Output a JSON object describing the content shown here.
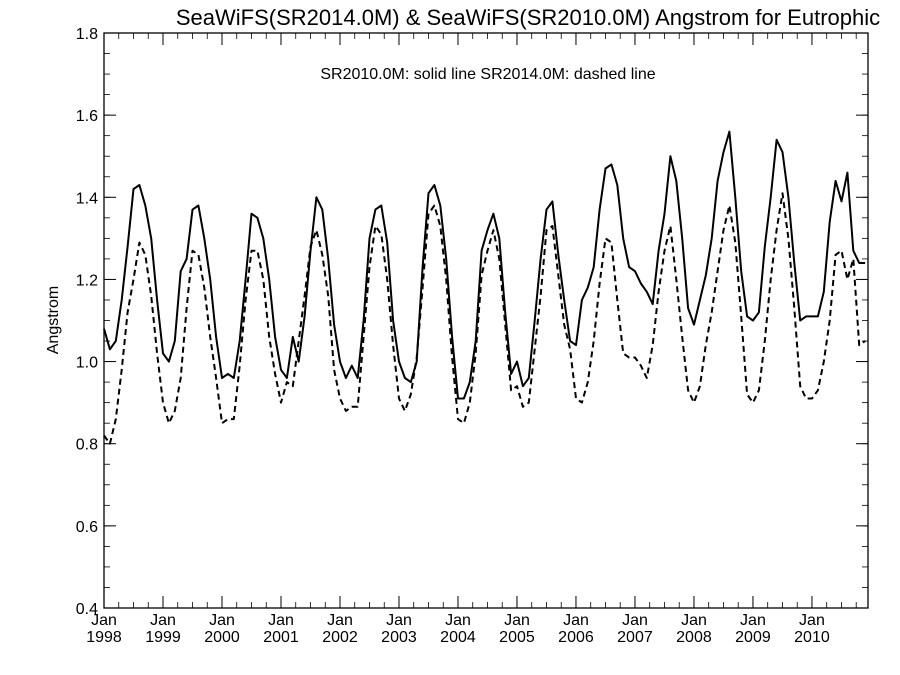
{
  "chart_data": {
    "type": "line",
    "title": "SeaWiFS(SR2014.0M) & SeaWiFS(SR2010.0M)  Angstrom for Eutrophic",
    "annotation": "SR2010.0M: solid line   SR2014.0M: dashed line",
    "xlabel": "",
    "ylabel": "Angstrom",
    "ylim": [
      0.4,
      1.8
    ],
    "yticks": [
      "0.4",
      "0.6",
      "0.8",
      "1.0",
      "1.2",
      "1.4",
      "1.6",
      "1.8"
    ],
    "xlim": [
      1998.0,
      2010.95
    ],
    "xticks": [
      {
        "top": "Jan",
        "bottom": "1998",
        "x": 1998
      },
      {
        "top": "Jan",
        "bottom": "1999",
        "x": 1999
      },
      {
        "top": "Jan",
        "bottom": "2000",
        "x": 2000
      },
      {
        "top": "Jan",
        "bottom": "2001",
        "x": 2001
      },
      {
        "top": "Jan",
        "bottom": "2002",
        "x": 2002
      },
      {
        "top": "Jan",
        "bottom": "2003",
        "x": 2003
      },
      {
        "top": "Jan",
        "bottom": "2004",
        "x": 2004
      },
      {
        "top": "Jan",
        "bottom": "2005",
        "x": 2005
      },
      {
        "top": "Jan",
        "bottom": "2006",
        "x": 2006
      },
      {
        "top": "Jan",
        "bottom": "2007",
        "x": 2007
      },
      {
        "top": "Jan",
        "bottom": "2008",
        "x": 2008
      },
      {
        "top": "Jan",
        "bottom": "2009",
        "x": 2009
      },
      {
        "top": "Jan",
        "bottom": "2010",
        "x": 2010
      }
    ],
    "grid": false,
    "series": [
      {
        "name": "SR2010.0M",
        "style": "solid",
        "x": [
          1998.0,
          1998.1,
          1998.2,
          1998.3,
          1998.4,
          1998.5,
          1998.6,
          1998.7,
          1998.8,
          1998.9,
          1999.0,
          1999.1,
          1999.2,
          1999.3,
          1999.4,
          1999.5,
          1999.6,
          1999.7,
          1999.8,
          1999.9,
          2000.0,
          2000.1,
          2000.2,
          2000.3,
          2000.4,
          2000.5,
          2000.6,
          2000.7,
          2000.8,
          2000.9,
          2001.0,
          2001.1,
          2001.2,
          2001.3,
          2001.4,
          2001.5,
          2001.6,
          2001.7,
          2001.8,
          2001.9,
          2002.0,
          2002.1,
          2002.2,
          2002.3,
          2002.4,
          2002.5,
          2002.6,
          2002.7,
          2002.8,
          2002.9,
          2003.0,
          2003.1,
          2003.2,
          2003.3,
          2003.4,
          2003.5,
          2003.6,
          2003.7,
          2003.8,
          2003.9,
          2004.0,
          2004.1,
          2004.2,
          2004.3,
          2004.4,
          2004.5,
          2004.6,
          2004.7,
          2004.8,
          2004.9,
          2005.0,
          2005.1,
          2005.2,
          2005.3,
          2005.4,
          2005.5,
          2005.6,
          2005.7,
          2005.8,
          2005.9,
          2006.0,
          2006.1,
          2006.2,
          2006.3,
          2006.4,
          2006.5,
          2006.6,
          2006.7,
          2006.8,
          2006.9,
          2007.0,
          2007.1,
          2007.2,
          2007.3,
          2007.4,
          2007.5,
          2007.6,
          2007.7,
          2007.8,
          2007.9,
          2008.0,
          2008.1,
          2008.2,
          2008.3,
          2008.4,
          2008.5,
          2008.6,
          2008.7,
          2008.8,
          2008.9,
          2009.0,
          2009.1,
          2009.2,
          2009.3,
          2009.4,
          2009.5,
          2009.6,
          2009.7,
          2009.8,
          2009.9,
          2010.0,
          2010.1,
          2010.2,
          2010.3,
          2010.4,
          2010.5,
          2010.6,
          2010.7,
          2010.8,
          2010.9
        ],
        "y": [
          1.08,
          1.03,
          1.05,
          1.15,
          1.28,
          1.42,
          1.43,
          1.38,
          1.3,
          1.15,
          1.02,
          1.0,
          1.05,
          1.22,
          1.25,
          1.37,
          1.38,
          1.3,
          1.2,
          1.06,
          0.96,
          0.97,
          0.96,
          1.05,
          1.2,
          1.36,
          1.35,
          1.3,
          1.2,
          1.06,
          0.98,
          0.96,
          1.06,
          1.0,
          1.11,
          1.27,
          1.4,
          1.37,
          1.25,
          1.09,
          1.0,
          0.96,
          0.99,
          0.96,
          1.1,
          1.3,
          1.37,
          1.38,
          1.29,
          1.1,
          1.0,
          0.96,
          0.95,
          1.0,
          1.23,
          1.41,
          1.43,
          1.38,
          1.25,
          1.06,
          0.91,
          0.91,
          0.95,
          1.05,
          1.27,
          1.32,
          1.36,
          1.3,
          1.12,
          0.97,
          1.0,
          0.94,
          0.96,
          1.1,
          1.25,
          1.37,
          1.39,
          1.26,
          1.15,
          1.05,
          1.04,
          1.15,
          1.18,
          1.23,
          1.37,
          1.47,
          1.48,
          1.43,
          1.3,
          1.23,
          1.22,
          1.19,
          1.17,
          1.14,
          1.27,
          1.36,
          1.5,
          1.44,
          1.3,
          1.13,
          1.09,
          1.15,
          1.21,
          1.3,
          1.44,
          1.51,
          1.56,
          1.4,
          1.22,
          1.11,
          1.1,
          1.12,
          1.28,
          1.4,
          1.54,
          1.51,
          1.4,
          1.24,
          1.1,
          1.11,
          1.11,
          1.11,
          1.17,
          1.34,
          1.44,
          1.39,
          1.46,
          1.27,
          1.24,
          1.24
        ],
        "color": "#000000"
      },
      {
        "name": "SR2014.0M",
        "style": "dashed",
        "x": [
          1998.0,
          1998.1,
          1998.2,
          1998.3,
          1998.4,
          1998.5,
          1998.6,
          1998.7,
          1998.8,
          1998.9,
          1999.0,
          1999.1,
          1999.2,
          1999.3,
          1999.4,
          1999.5,
          1999.6,
          1999.7,
          1999.8,
          1999.9,
          2000.0,
          2000.1,
          2000.2,
          2000.3,
          2000.4,
          2000.5,
          2000.6,
          2000.7,
          2000.8,
          2000.9,
          2001.0,
          2001.1,
          2001.2,
          2001.3,
          2001.4,
          2001.5,
          2001.6,
          2001.7,
          2001.8,
          2001.9,
          2002.0,
          2002.1,
          2002.2,
          2002.3,
          2002.4,
          2002.5,
          2002.6,
          2002.7,
          2002.8,
          2002.9,
          2003.0,
          2003.1,
          2003.2,
          2003.3,
          2003.4,
          2003.5,
          2003.6,
          2003.7,
          2003.8,
          2003.9,
          2004.0,
          2004.1,
          2004.2,
          2004.3,
          2004.4,
          2004.5,
          2004.6,
          2004.7,
          2004.8,
          2004.9,
          2005.0,
          2005.1,
          2005.2,
          2005.3,
          2005.4,
          2005.5,
          2005.6,
          2005.7,
          2005.8,
          2005.9,
          2006.0,
          2006.1,
          2006.2,
          2006.3,
          2006.4,
          2006.5,
          2006.6,
          2006.7,
          2006.8,
          2006.9,
          2007.0,
          2007.1,
          2007.2,
          2007.3,
          2007.4,
          2007.5,
          2007.6,
          2007.7,
          2007.8,
          2007.9,
          2008.0,
          2008.1,
          2008.2,
          2008.3,
          2008.4,
          2008.5,
          2008.6,
          2008.7,
          2008.8,
          2008.9,
          2009.0,
          2009.1,
          2009.2,
          2009.3,
          2009.4,
          2009.5,
          2009.6,
          2009.7,
          2009.8,
          2009.9,
          2010.0,
          2010.1,
          2010.2,
          2010.3,
          2010.4,
          2010.5,
          2010.6,
          2010.7,
          2010.8,
          2010.9
        ],
        "y": [
          0.82,
          0.8,
          0.86,
          0.98,
          1.12,
          1.2,
          1.29,
          1.26,
          1.16,
          1.02,
          0.9,
          0.85,
          0.88,
          0.96,
          1.13,
          1.27,
          1.26,
          1.18,
          1.06,
          0.96,
          0.85,
          0.86,
          0.86,
          0.99,
          1.15,
          1.27,
          1.27,
          1.2,
          1.06,
          0.97,
          0.9,
          0.95,
          0.94,
          1.05,
          1.16,
          1.28,
          1.32,
          1.26,
          1.16,
          0.98,
          0.91,
          0.88,
          0.89,
          0.89,
          1.06,
          1.23,
          1.33,
          1.31,
          1.2,
          1.04,
          0.91,
          0.88,
          0.92,
          1.01,
          1.18,
          1.36,
          1.38,
          1.33,
          1.2,
          1.01,
          0.86,
          0.85,
          0.9,
          1.02,
          1.21,
          1.27,
          1.32,
          1.25,
          1.09,
          0.93,
          0.94,
          0.89,
          0.9,
          1.03,
          1.16,
          1.32,
          1.33,
          1.21,
          1.09,
          1.03,
          0.91,
          0.9,
          0.95,
          1.05,
          1.19,
          1.3,
          1.29,
          1.15,
          1.02,
          1.01,
          1.01,
          0.99,
          0.96,
          1.04,
          1.17,
          1.27,
          1.33,
          1.2,
          1.06,
          0.93,
          0.9,
          0.94,
          1.04,
          1.12,
          1.22,
          1.32,
          1.38,
          1.29,
          1.11,
          0.92,
          0.9,
          0.93,
          1.05,
          1.2,
          1.32,
          1.41,
          1.3,
          1.13,
          0.94,
          0.91,
          0.91,
          0.93,
          1.0,
          1.1,
          1.26,
          1.27,
          1.2,
          1.25,
          1.04,
          1.05
        ],
        "color": "#000000"
      }
    ]
  }
}
